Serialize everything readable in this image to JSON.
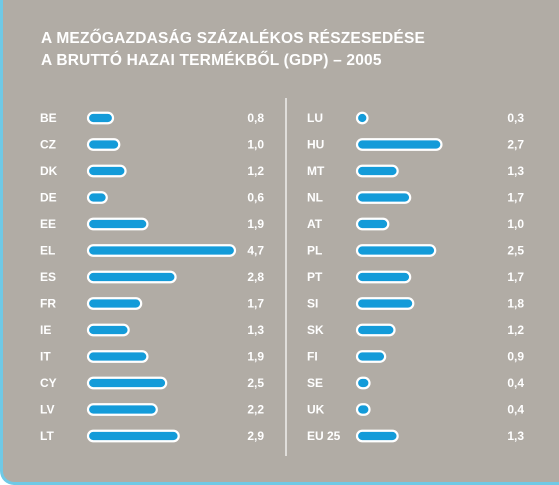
{
  "header": {
    "title_line1": "A MEZŐGAZDASÁG SZÁZALÉKOS RÉSZESEDÉSE",
    "title_line2": "A BRUTTÓ HAZAI TERMÉKBŐL (GDP) – 2005"
  },
  "chart_data": {
    "type": "bar",
    "orientation": "horizontal",
    "title": "A MEZŐGAZDASÁG SZÁZALÉKOS RÉSZESEDÉSE A BRUTTÓ HAZAI TERMÉKBŐL (GDP) – 2005",
    "xlim": [
      0,
      4.7
    ],
    "grid": false,
    "colors": {
      "bar": "#139bd9",
      "outline": "#ffffff",
      "background": "#b1aca5"
    },
    "columns": [
      {
        "categories": [
          "BE",
          "CZ",
          "DK",
          "DE",
          "EE",
          "EL",
          "ES",
          "FR",
          "IE",
          "IT",
          "CY",
          "LV",
          "LT"
        ],
        "values": [
          0.8,
          1.0,
          1.2,
          0.6,
          1.9,
          4.7,
          2.8,
          1.7,
          1.3,
          1.9,
          2.5,
          2.2,
          2.9
        ],
        "value_labels": [
          "0,8",
          "1,0",
          "1,2",
          "0,6",
          "1,9",
          "4,7",
          "2,8",
          "1,7",
          "1,3",
          "1,9",
          "2,5",
          "2,2",
          "2,9"
        ]
      },
      {
        "categories": [
          "LU",
          "HU",
          "MT",
          "NL",
          "AT",
          "PL",
          "PT",
          "SI",
          "SK",
          "FI",
          "SE",
          "UK",
          "EU 25"
        ],
        "values": [
          0.3,
          2.7,
          1.3,
          1.7,
          1.0,
          2.5,
          1.7,
          1.8,
          1.2,
          0.9,
          0.4,
          0.4,
          1.3
        ],
        "value_labels": [
          "0,3",
          "2,7",
          "1,3",
          "1,7",
          "1,0",
          "2,5",
          "1,7",
          "1,8",
          "1,2",
          "0,9",
          "0,4",
          "0,4",
          "1,3"
        ]
      }
    ]
  }
}
